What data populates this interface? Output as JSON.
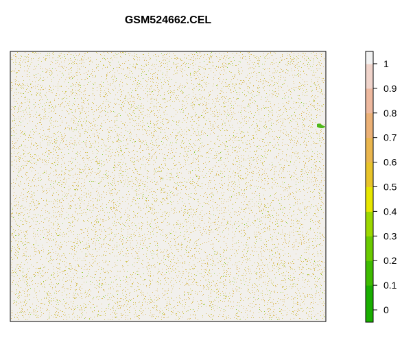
{
  "chart_data": {
    "type": "heatmap",
    "title": "GSM524662.CEL",
    "xlabel": "",
    "ylabel": "",
    "grid": false,
    "legend": "right",
    "description_values": {
      "dominant_value_range": [
        0.9,
        1.0
      ],
      "speckle_value_range": [
        0.4,
        0.65
      ],
      "sparse_low_value_range": [
        0.15,
        0.3
      ]
    },
    "colorbar": {
      "range": [
        -0.05,
        1.05
      ],
      "ticks": [
        {
          "value": 1,
          "label": "1"
        },
        {
          "value": 0.9,
          "label": "0.9"
        },
        {
          "value": 0.8,
          "label": "0.8"
        },
        {
          "value": 0.7,
          "label": "0.7"
        },
        {
          "value": 0.6,
          "label": "0.6"
        },
        {
          "value": 0.5,
          "label": "0.5"
        },
        {
          "value": 0.4,
          "label": "0.4"
        },
        {
          "value": 0.3,
          "label": "0.3"
        },
        {
          "value": 0.2,
          "label": "0.2"
        },
        {
          "value": 0.1,
          "label": "0.1"
        },
        {
          "value": 0,
          "label": "0"
        }
      ],
      "color_stops": [
        {
          "value": -0.05,
          "color": "#00A600"
        },
        {
          "value": 0.1,
          "color": "#19AE00"
        },
        {
          "value": 0.2,
          "color": "#3EBB00"
        },
        {
          "value": 0.3,
          "color": "#6ACA00"
        },
        {
          "value": 0.4,
          "color": "#9CD800"
        },
        {
          "value": 0.5,
          "color": "#E6E600"
        },
        {
          "value": 0.6,
          "color": "#E8C42A"
        },
        {
          "value": 0.7,
          "color": "#EAB64E"
        },
        {
          "value": 0.8,
          "color": "#ECB176"
        },
        {
          "value": 0.9,
          "color": "#EEB99F"
        },
        {
          "value": 1.0,
          "color": "#F0D4CB"
        },
        {
          "value": 1.05,
          "color": "#F2F2F2"
        }
      ]
    },
    "colors": {
      "background": "#F2F0EC",
      "speckle_primary": "#D8B24A",
      "speckle_secondary": "#C8C23A",
      "speckle_low": "#7EC820",
      "frame": "#000000"
    }
  }
}
